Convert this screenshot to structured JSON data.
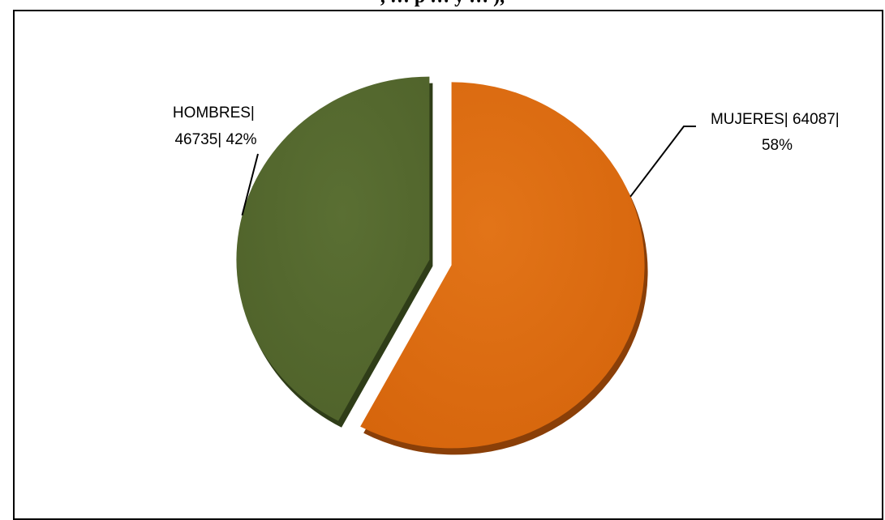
{
  "page": {
    "title_fragment": ", … p … y … ),"
  },
  "chart_data": {
    "type": "pie",
    "title": "",
    "categories": [
      "HOMBRES",
      "MUJERES"
    ],
    "values": [
      46735,
      64087
    ],
    "percentages": [
      "42%",
      "58%"
    ],
    "colors": [
      "#55692f",
      "#d9690f"
    ],
    "shadow_colors": [
      "#2f3d18",
      "#8a3f08"
    ],
    "labels": [
      {
        "line1": "HOMBRES|",
        "line2": "46735| 42%"
      },
      {
        "line1": "MUJERES| 64087|",
        "line2": "58%"
      }
    ],
    "exploded": true,
    "style": "3d-tilted"
  }
}
